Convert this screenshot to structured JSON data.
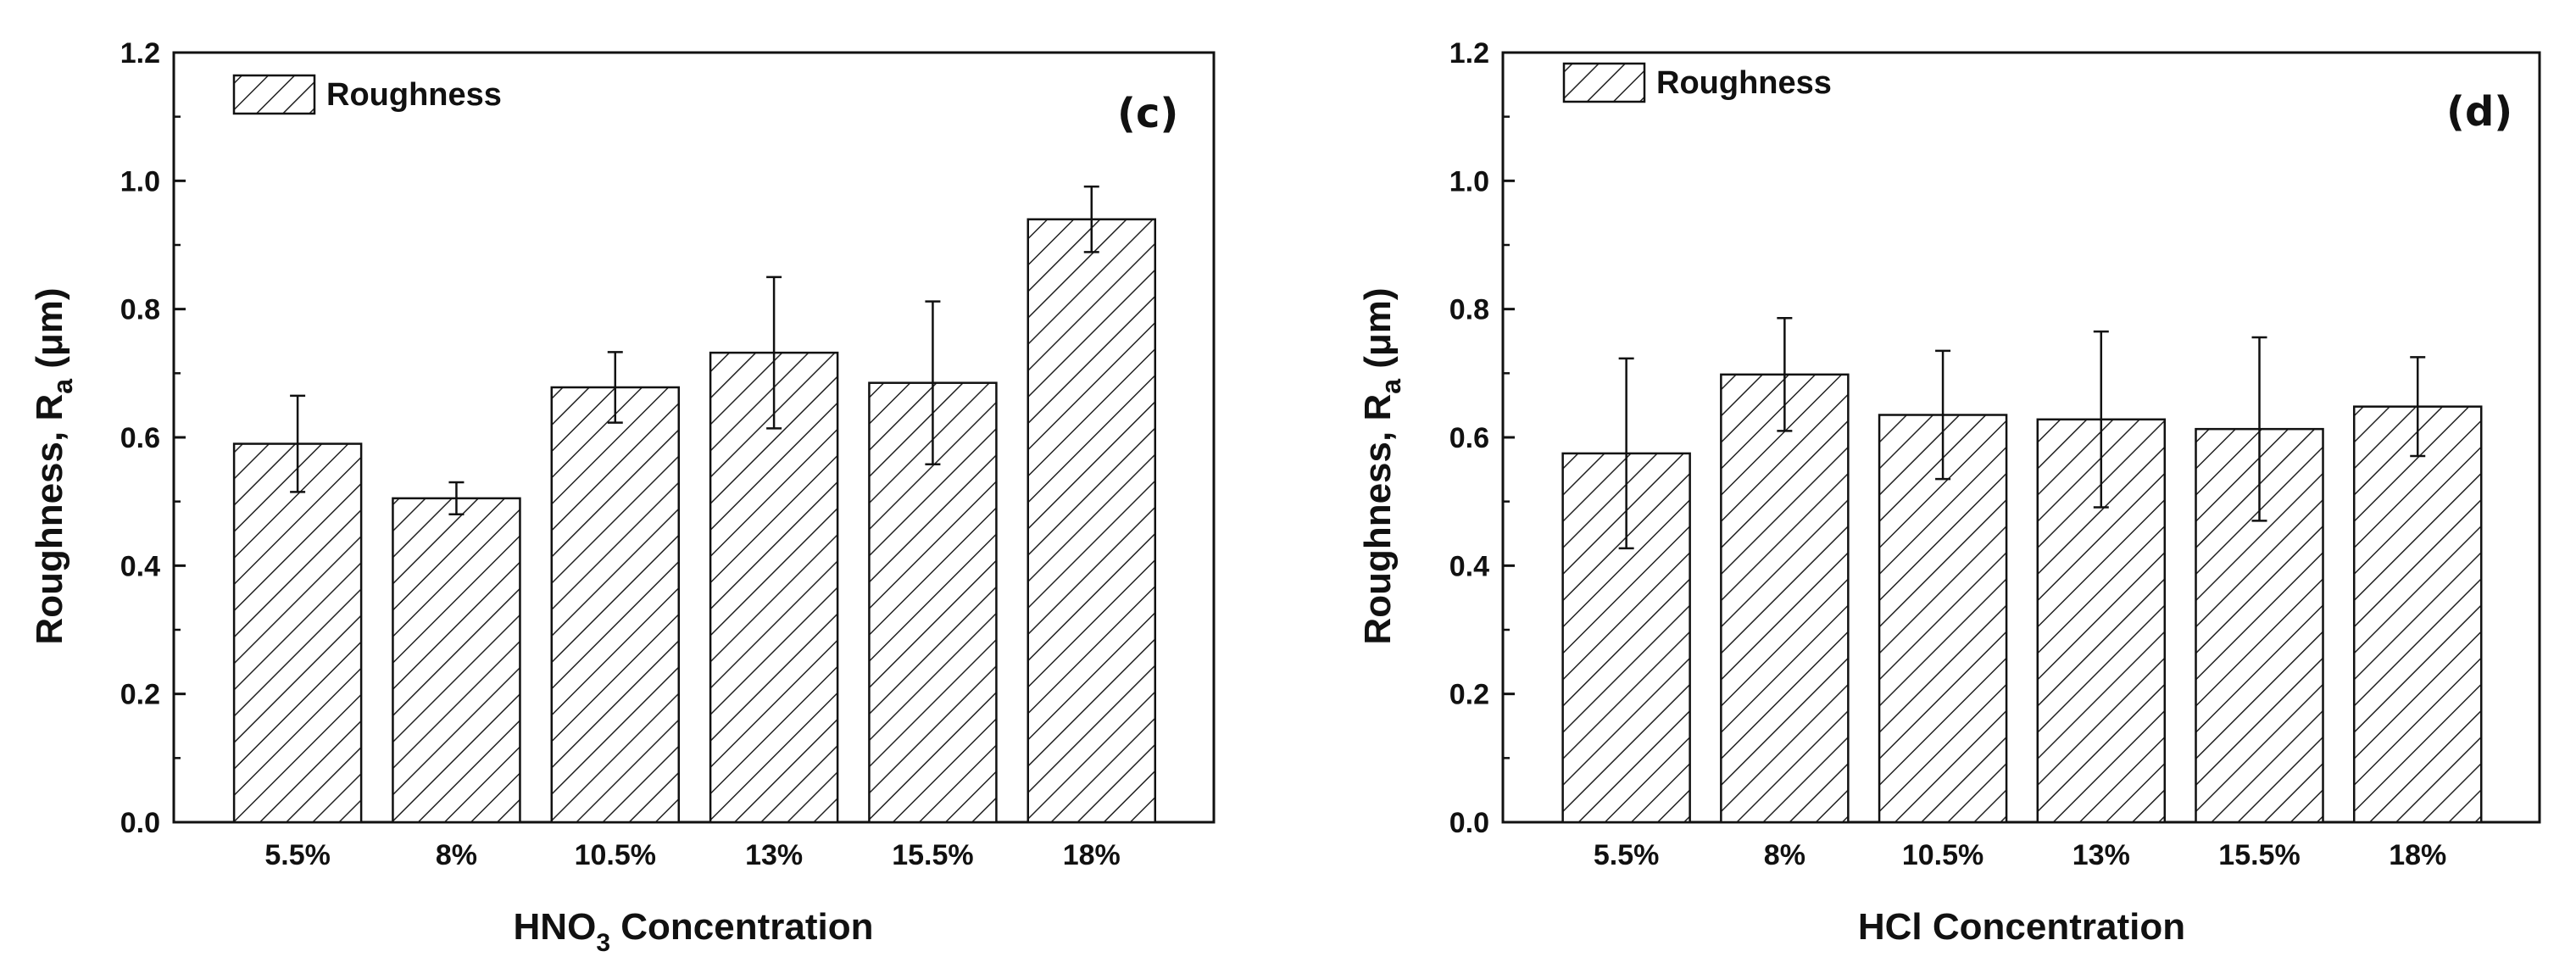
{
  "chart_data": [
    {
      "type": "bar",
      "panel_label": "(c)",
      "legend": [
        "Roughness"
      ],
      "legend_position": "top-left",
      "xlabel_main": "HNO",
      "xlabel_subscript": "3",
      "xlabel_tail": " Concentration",
      "ylabel_main": "Roughness, R",
      "ylabel_subscript": "a",
      "ylabel_tail": " (μm)",
      "ylim": [
        0,
        1.2
      ],
      "yticks": [
        "0.0",
        "0.2",
        "0.4",
        "0.6",
        "0.8",
        "1.0",
        "1.2"
      ],
      "categories": [
        "5.5%",
        "8%",
        "10.5%",
        "13%",
        "15.5%",
        "18%"
      ],
      "values": [
        0.59,
        0.505,
        0.678,
        0.732,
        0.685,
        0.94
      ],
      "errors": [
        0.075,
        0.025,
        0.055,
        0.118,
        0.127,
        0.051
      ],
      "grid": false
    },
    {
      "type": "bar",
      "panel_label": "(d)",
      "legend": [
        "Roughness"
      ],
      "legend_position": "top-left",
      "xlabel_main": "HCl Concentration",
      "xlabel_subscript": "",
      "xlabel_tail": "",
      "ylabel_main": "Roughness, R",
      "ylabel_subscript": "a",
      "ylabel_tail": " (μm)",
      "ylim": [
        0,
        1.2
      ],
      "yticks": [
        "0.0",
        "0.2",
        "0.4",
        "0.6",
        "0.8",
        "1.0",
        "1.2"
      ],
      "categories": [
        "5.5%",
        "8%",
        "10.5%",
        "13%",
        "15.5%",
        "18%"
      ],
      "values": [
        0.575,
        0.698,
        0.635,
        0.628,
        0.613,
        0.648
      ],
      "errors": [
        0.148,
        0.088,
        0.1,
        0.137,
        0.143,
        0.077
      ],
      "grid": false
    }
  ]
}
